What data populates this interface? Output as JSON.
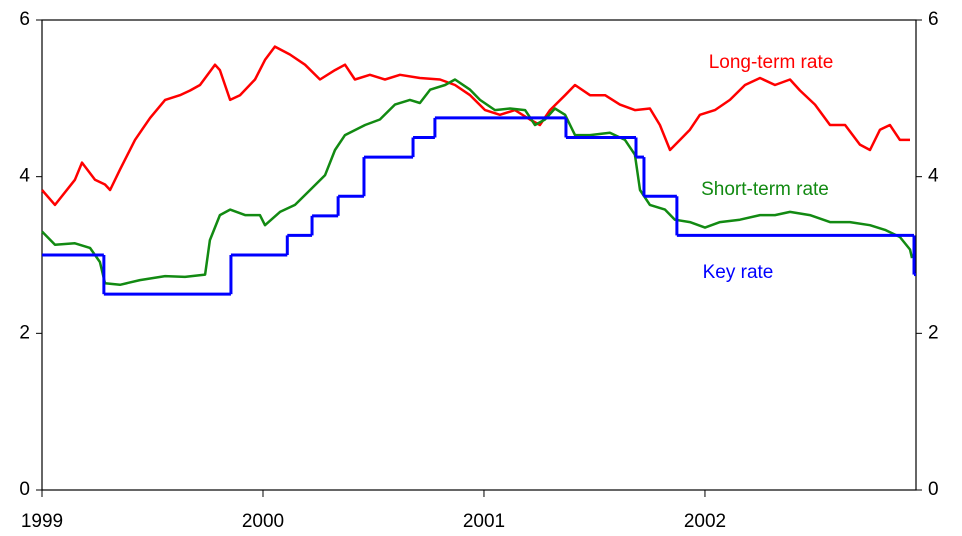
{
  "chart_data": {
    "type": "line",
    "xlim": [
      1999,
      2002.955
    ],
    "xticks": [
      1999,
      2000,
      2001,
      2002
    ],
    "ylim": [
      0,
      6
    ],
    "yticks": [
      0,
      2,
      4,
      6
    ],
    "y2lim": [
      0,
      6
    ],
    "y2ticks": [
      0,
      2,
      4,
      6
    ],
    "series": [
      {
        "name": "Long-term rate",
        "color": "#ff0000",
        "x": [
          1999,
          1999.059,
          1999.149,
          1999.181,
          1999.24,
          1999.285,
          1999.308,
          1999.353,
          1999.421,
          1999.489,
          1999.557,
          1999.624,
          1999.67,
          1999.715,
          1999.783,
          1999.805,
          1999.851,
          1999.896,
          1999.964,
          2000.009,
          2000.054,
          2000.122,
          2000.19,
          2000.258,
          2000.326,
          2000.371,
          2000.416,
          2000.484,
          2000.552,
          2000.62,
          2000.71,
          2000.801,
          2000.869,
          2000.937,
          2001.005,
          2001.072,
          2001.14,
          2001.208,
          2001.253,
          2001.299,
          2001.367,
          2001.412,
          2001.48,
          2001.548,
          2001.615,
          2001.683,
          2001.751,
          2001.796,
          2001.842,
          2001.887,
          2001.932,
          2001.977,
          2002.045,
          2002.113,
          2002.181,
          2002.249,
          2002.317,
          2002.385,
          2002.43,
          2002.498,
          2002.566,
          2002.634,
          2002.701,
          2002.747,
          2002.792,
          2002.837,
          2002.882,
          2002.928
        ],
        "values": [
          3.83,
          3.64,
          3.96,
          4.18,
          3.96,
          3.9,
          3.83,
          4.09,
          4.47,
          4.75,
          4.98,
          5.04,
          5.1,
          5.17,
          5.43,
          5.36,
          4.98,
          5.04,
          5.24,
          5.49,
          5.66,
          5.56,
          5.43,
          5.24,
          5.36,
          5.43,
          5.24,
          5.3,
          5.24,
          5.3,
          5.26,
          5.24,
          5.17,
          5.04,
          4.85,
          4.79,
          4.85,
          4.73,
          4.66,
          4.85,
          5.04,
          5.17,
          5.04,
          5.04,
          4.92,
          4.85,
          4.87,
          4.66,
          4.34,
          4.47,
          4.6,
          4.79,
          4.85,
          4.98,
          5.17,
          5.26,
          5.17,
          5.24,
          5.1,
          4.92,
          4.66,
          4.66,
          4.41,
          4.34,
          4.6,
          4.66,
          4.47,
          4.47
        ]
      },
      {
        "name": "Short-term rate",
        "color": "#128a12",
        "x": [
          1999,
          1999.059,
          1999.149,
          1999.217,
          1999.262,
          1999.285,
          1999.353,
          1999.443,
          1999.557,
          1999.647,
          1999.738,
          1999.76,
          1999.805,
          1999.851,
          1999.919,
          1999.986,
          2000.009,
          2000.077,
          2000.145,
          2000.213,
          2000.281,
          2000.326,
          2000.371,
          2000.462,
          2000.529,
          2000.597,
          2000.665,
          2000.71,
          2000.756,
          2000.824,
          2000.869,
          2000.937,
          2000.982,
          2001.05,
          2001.118,
          2001.186,
          2001.231,
          2001.276,
          2001.321,
          2001.367,
          2001.412,
          2001.48,
          2001.57,
          2001.638,
          2001.683,
          2001.706,
          2001.751,
          2001.819,
          2001.864,
          2001.932,
          2002,
          2002.068,
          2002.158,
          2002.249,
          2002.317,
          2002.385,
          2002.475,
          2002.566,
          2002.656,
          2002.747,
          2002.815,
          2002.882,
          2002.928,
          2002.937
        ],
        "values": [
          3.3,
          3.13,
          3.15,
          3.09,
          2.91,
          2.64,
          2.62,
          2.68,
          2.73,
          2.72,
          2.75,
          3.19,
          3.51,
          3.58,
          3.51,
          3.51,
          3.38,
          3.55,
          3.64,
          3.83,
          4.02,
          4.34,
          4.53,
          4.66,
          4.73,
          4.92,
          4.98,
          4.94,
          5.11,
          5.17,
          5.24,
          5.11,
          4.98,
          4.85,
          4.87,
          4.85,
          4.66,
          4.73,
          4.87,
          4.79,
          4.53,
          4.53,
          4.56,
          4.47,
          4.28,
          3.83,
          3.64,
          3.58,
          3.45,
          3.42,
          3.35,
          3.42,
          3.45,
          3.51,
          3.51,
          3.55,
          3.51,
          3.42,
          3.42,
          3.38,
          3.32,
          3.23,
          3.07,
          2.96
        ]
      },
      {
        "name": "Key rate",
        "color": "#0000ff",
        "step": true,
        "x": [
          1999,
          1999.28,
          1999.855,
          2000.11,
          2000.222,
          2000.34,
          2000.457,
          2000.679,
          2000.778,
          2001.371,
          2001.688,
          2001.724,
          2001.873,
          2002.946
        ],
        "values": [
          3,
          2.5,
          3,
          3.25,
          3.5,
          3.75,
          4.25,
          4.5,
          4.75,
          4.5,
          4.25,
          3.75,
          3.25,
          2.75
        ]
      }
    ]
  }
}
